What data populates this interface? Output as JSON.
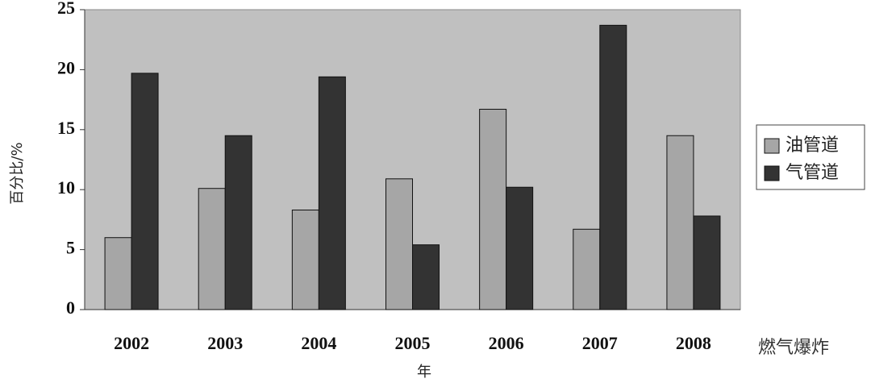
{
  "chart_data": {
    "type": "bar",
    "x_label": "年",
    "y_label": "百分比/%",
    "categories": [
      "2002",
      "2003",
      "2004",
      "2005",
      "2006",
      "2007",
      "2008"
    ],
    "series": [
      {
        "name": "油管道",
        "color": "#a6a6a6",
        "values": [
          6.0,
          10.1,
          8.3,
          10.9,
          16.7,
          6.7,
          14.5
        ]
      },
      {
        "name": "气管道",
        "color": "#333333",
        "values": [
          19.7,
          14.5,
          19.4,
          5.4,
          10.2,
          23.7,
          7.8
        ]
      }
    ],
    "ylim": [
      0,
      25
    ],
    "yticks": [
      0,
      5,
      10,
      15,
      20,
      25
    ],
    "grid": false,
    "legend": "right",
    "watermark": "燃气爆炸"
  }
}
